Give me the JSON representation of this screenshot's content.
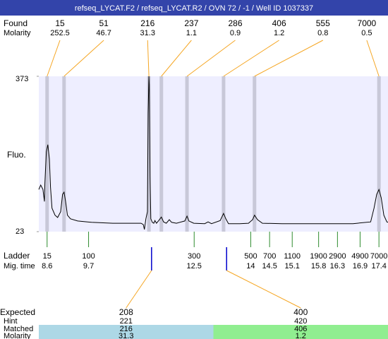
{
  "chart_data": {
    "type": "line",
    "title": "refseq_LYCAT.F2 / refseq_LYCAT.R2 / OVN 72 / -1 / Well ID 1037337",
    "ylabel": "Fluo.",
    "xlim": [
      8.38,
      17.64
    ],
    "ylim": [
      23,
      373
    ],
    "yticks": [
      23,
      373
    ],
    "color": "#000000",
    "x": [
      8.38,
      8.43,
      8.49,
      8.53,
      8.54,
      8.58,
      8.62,
      8.66,
      8.69,
      8.73,
      8.81,
      8.88,
      8.96,
      9.01,
      9.05,
      9.09,
      9.14,
      9.22,
      9.41,
      9.78,
      10.34,
      10.9,
      11.09,
      11.15,
      11.18,
      11.22,
      11.26,
      11.28,
      11.3,
      11.31,
      11.33,
      11.35,
      11.39,
      11.43,
      11.46,
      11.5,
      11.56,
      11.63,
      11.69,
      11.76,
      11.84,
      11.9,
      12.03,
      12.25,
      12.31,
      12.36,
      12.49,
      12.78,
      12.87,
      12.96,
      13.19,
      13.28,
      13.34,
      13.41,
      13.71,
      13.94,
      14.05,
      14.1,
      14.18,
      14.31,
      14.83,
      16.71,
      17.18,
      17.27,
      17.34,
      17.4,
      17.46,
      17.53,
      17.61,
      17.64
    ],
    "values": [
      118,
      128,
      118,
      91,
      131,
      203,
      219,
      187,
      123,
      76,
      60,
      55,
      68,
      107,
      112,
      91,
      60,
      52,
      47,
      44,
      42,
      42,
      42,
      39,
      28,
      52,
      68,
      290,
      373,
      354,
      147,
      52,
      44,
      42,
      48,
      42,
      48,
      56,
      45,
      42,
      50,
      44,
      42,
      47,
      58,
      47,
      42,
      41,
      45,
      41,
      48,
      64,
      52,
      41,
      41,
      42,
      50,
      60,
      50,
      42,
      41,
      41,
      45,
      76,
      107,
      118,
      99,
      60,
      45,
      44
    ],
    "found": {
      "label": "Found",
      "molarity_label": "Molarity",
      "line_color": "#f5a623",
      "band_color": "#c8c8d8",
      "peaks": [
        {
          "size": 15,
          "molarity": 252.5,
          "time": 8.6
        },
        {
          "size": 51,
          "molarity": 46.7,
          "time": 9.05
        },
        {
          "size": 216,
          "molarity": 31.3,
          "time": 11.3
        },
        {
          "size": 237,
          "molarity": 1.1,
          "time": 11.63
        },
        {
          "size": 286,
          "molarity": 0.9,
          "time": 12.31
        },
        {
          "size": 406,
          "molarity": 1.2,
          "time": 13.28
        },
        {
          "size": 555,
          "molarity": 0.8,
          "time": 14.1
        },
        {
          "size": 7000,
          "molarity": 0.5,
          "time": 17.4
        }
      ]
    },
    "ladder": {
      "label": "Ladder",
      "time_label": "Mig. time",
      "color": "#2e8b2e",
      "sizes": [
        15,
        100,
        300,
        500,
        700,
        1100,
        1900,
        2900,
        4900,
        7000
      ],
      "times": [
        8.6,
        9.7,
        12.5,
        14,
        14.5,
        15.1,
        15.8,
        16.3,
        16.9,
        17.4
      ]
    },
    "expected": {
      "labels": [
        "Expected",
        "Hint",
        "Matched",
        "Molarity"
      ],
      "mark_color": "#0000cc",
      "items": [
        {
          "expected": 208,
          "hint": 221,
          "matched": 216,
          "molarity": 31.3,
          "time": 11.37,
          "color": "#add8e6"
        },
        {
          "expected": 400,
          "hint": 420,
          "matched": 406,
          "molarity": 1.2,
          "time": 13.36,
          "color": "#90ee90"
        }
      ]
    }
  }
}
